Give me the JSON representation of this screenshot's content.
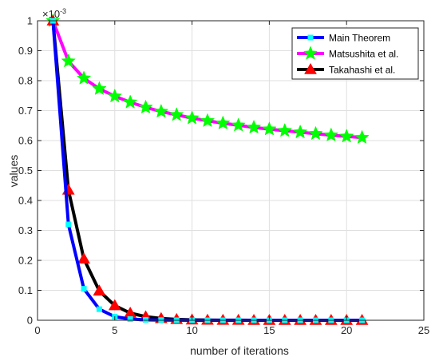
{
  "chart_data": {
    "type": "line",
    "xlabel": "number of iterations",
    "ylabel": "values",
    "y_exponent_label": "×10",
    "y_exponent_power": "-3",
    "xlim": [
      0,
      25
    ],
    "ylim": [
      0,
      1
    ],
    "x_ticks": [
      0,
      5,
      10,
      15,
      20,
      25
    ],
    "x_tick_labels": [
      "0",
      "5",
      "10",
      "15",
      "20",
      "25"
    ],
    "y_ticks": [
      0,
      0.1,
      0.2,
      0.3,
      0.4,
      0.5,
      0.6,
      0.7,
      0.8,
      0.9,
      1
    ],
    "y_tick_labels": [
      "0",
      "0.1",
      "0.2",
      "0.3",
      "0.4",
      "0.5",
      "0.6",
      "0.7",
      "0.8",
      "0.9",
      "1"
    ],
    "grid": true,
    "legend_position": "top-right",
    "x": [
      1,
      2,
      3,
      4,
      5,
      6,
      7,
      8,
      9,
      10,
      11,
      12,
      13,
      14,
      15,
      16,
      17,
      18,
      19,
      20,
      21
    ],
    "series": [
      {
        "name": "Main Theorem",
        "color": "#0000ff",
        "marker": "square",
        "marker_color": "#00ffff",
        "values": [
          1.0,
          0.32,
          0.105,
          0.037,
          0.012,
          0.004,
          0.0015,
          0.0005,
          0.0002,
          0.0001,
          0,
          0,
          0,
          0,
          0,
          0,
          0,
          0,
          0,
          0,
          0
        ]
      },
      {
        "name": "Matsushita et al.",
        "color": "#ff00ff",
        "marker": "star",
        "marker_color": "#00ff00",
        "values": [
          1.0,
          0.865,
          0.808,
          0.773,
          0.748,
          0.728,
          0.711,
          0.697,
          0.686,
          0.675,
          0.666,
          0.658,
          0.651,
          0.644,
          0.638,
          0.633,
          0.628,
          0.623,
          0.618,
          0.614,
          0.61
        ]
      },
      {
        "name": "Takahashi et al.",
        "color": "#000000",
        "marker": "triangle",
        "marker_color": "#ff0000",
        "values": [
          1.0,
          0.435,
          0.205,
          0.098,
          0.049,
          0.024,
          0.012,
          0.006,
          0.003,
          0.0015,
          0.0008,
          0.0004,
          0.0002,
          0.0001,
          0,
          0,
          0,
          0,
          0,
          0,
          0
        ]
      }
    ]
  }
}
